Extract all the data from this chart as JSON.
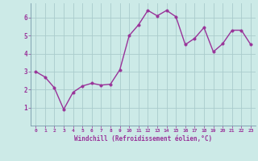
{
  "x": [
    0,
    1,
    2,
    3,
    4,
    5,
    6,
    7,
    8,
    9,
    10,
    11,
    12,
    13,
    14,
    15,
    16,
    17,
    18,
    19,
    20,
    21,
    22,
    23
  ],
  "y": [
    3.0,
    2.7,
    2.1,
    0.9,
    1.85,
    2.2,
    2.35,
    2.25,
    2.3,
    3.1,
    5.0,
    5.6,
    6.4,
    6.1,
    6.4,
    6.05,
    4.5,
    4.85,
    5.45,
    4.1,
    4.55,
    5.3,
    5.3,
    4.5
  ],
  "line_color": "#993399",
  "marker_color": "#993399",
  "bg_color": "#cceae7",
  "grid_color": "#aacccc",
  "xlabel": "Windchill (Refroidissement éolien,°C)",
  "xlabel_color": "#993399",
  "tick_color": "#993399",
  "ylim": [
    0,
    6.8
  ],
  "xlim": [
    -0.5,
    23.5
  ],
  "yticks": [
    1,
    2,
    3,
    4,
    5,
    6
  ],
  "xticks": [
    0,
    1,
    2,
    3,
    4,
    5,
    6,
    7,
    8,
    9,
    10,
    11,
    12,
    13,
    14,
    15,
    16,
    17,
    18,
    19,
    20,
    21,
    22,
    23
  ],
  "marker_size": 2.5,
  "line_width": 1.0,
  "spine_color": "#7799aa"
}
